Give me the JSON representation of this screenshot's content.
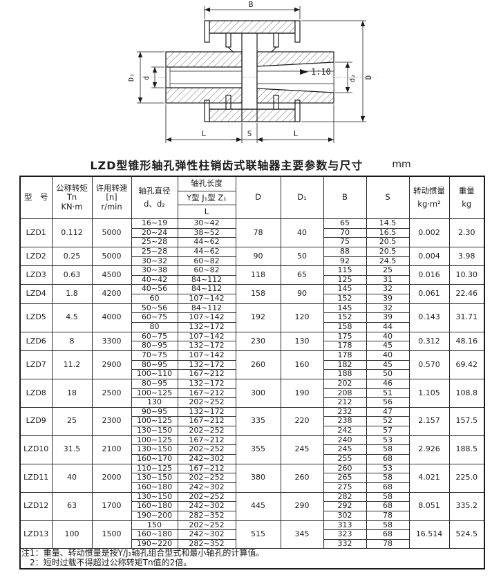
{
  "page": {
    "table_title": "LZD型锥形轴孔弹性柱销齿式联轴器主要参数与尺寸",
    "unit_label": "mm"
  },
  "diagram": {
    "labels": {
      "B": "B",
      "D": "D",
      "D1": "D₁",
      "d": "d",
      "d2": "d₂",
      "L_left": "L",
      "S": "S",
      "L_right": "L",
      "taper": "1:10"
    }
  },
  "table": {
    "headers": {
      "model": "型　号",
      "torque_l1": "公称转矩",
      "torque_l2": "Tn",
      "torque_l3": "KN·m",
      "speed_l1": "许用转速",
      "speed_l2": "[n]",
      "speed_l3": "r/min",
      "bore_dia_l1": "轴孔直径",
      "bore_dia_l2": "d、d₂",
      "bore_len": "轴孔长度",
      "bore_len_types": "Y型 J₁型 Z₁",
      "bore_len_L": "L",
      "D": "D",
      "D1": "D₁",
      "B": "B",
      "S": "S",
      "inertia_l1": "转动惯量",
      "inertia_l2": "kg·m²",
      "weight_l1": "重量",
      "weight_l2": "kg"
    },
    "rows": [
      {
        "model": "LZD1",
        "tn": "0.112",
        "n": "5000",
        "D": "78",
        "D1": "40",
        "inertia": "0.002",
        "weight": "2.30",
        "sub": [
          {
            "d": "16~19",
            "L": "30~42",
            "B": "65",
            "S": "14.5"
          },
          {
            "d": "20~24",
            "L": "38~52",
            "B": "70",
            "S": "16.5"
          },
          {
            "d": "25~28",
            "L": "44~62",
            "B": "75",
            "S": "20.5"
          }
        ]
      },
      {
        "model": "LZD2",
        "tn": "0.25",
        "n": "5000",
        "D": "90",
        "D1": "50",
        "inertia": "0.004",
        "weight": "3.98",
        "sub": [
          {
            "d": "25~28",
            "L": "44~62",
            "B": "88",
            "S": "20.5"
          },
          {
            "d": "30~32",
            "L": "60~82",
            "B": "92",
            "S": "24.5"
          }
        ]
      },
      {
        "model": "LZD3",
        "tn": "0.63",
        "n": "4500",
        "D": "118",
        "D1": "65",
        "inertia": "0.016",
        "weight": "10.30",
        "sub": [
          {
            "d": "30~38",
            "L": "60~82",
            "B": "115",
            "S": "25"
          },
          {
            "d": "40~42",
            "L": "84~112",
            "B": "125",
            "S": "31"
          }
        ]
      },
      {
        "model": "LZD4",
        "tn": "1.8",
        "n": "4200",
        "D": "158",
        "D1": "90",
        "inertia": "0.061",
        "weight": "22.46",
        "sub": [
          {
            "d": "40~56",
            "L": "84~112",
            "B": "145",
            "S": "32"
          },
          {
            "d": "60",
            "L": "107~142",
            "B": "152",
            "S": "39"
          }
        ]
      },
      {
        "model": "LZD5",
        "tn": "4.5",
        "n": "4000",
        "D": "192",
        "D1": "120",
        "inertia": "0.143",
        "weight": "31.71",
        "sub": [
          {
            "d": "50~56",
            "L": "84~112",
            "B": "145",
            "S": "32"
          },
          {
            "d": "60~75",
            "L": "107~142",
            "B": "152",
            "S": "39"
          },
          {
            "d": "80",
            "L": "132~172",
            "B": "158",
            "S": "44"
          }
        ]
      },
      {
        "model": "LZD6",
        "tn": "8",
        "n": "3300",
        "D": "230",
        "D1": "130",
        "inertia": "0.312",
        "weight": "48.16",
        "sub": [
          {
            "d": "60~75",
            "L": "107~142",
            "B": "175",
            "S": "40"
          },
          {
            "d": "80~95",
            "L": "132~172",
            "B": "178",
            "S": "45"
          }
        ]
      },
      {
        "model": "LZD7",
        "tn": "11.2",
        "n": "2900",
        "D": "260",
        "D1": "160",
        "inertia": "0.570",
        "weight": "69.42",
        "sub": [
          {
            "d": "70~75",
            "L": "107~142",
            "B": "178",
            "S": "40"
          },
          {
            "d": "80~95",
            "L": "132~172",
            "B": "182",
            "S": "45"
          },
          {
            "d": "100~110",
            "L": "167~212",
            "B": "188",
            "S": "50"
          }
        ]
      },
      {
        "model": "LZD8",
        "tn": "18",
        "n": "2500",
        "D": "300",
        "D1": "190",
        "inertia": "1.105",
        "weight": "108.8",
        "sub": [
          {
            "d": "80~95",
            "L": "132~172",
            "B": "202",
            "S": "46"
          },
          {
            "d": "100~125",
            "L": "167~212",
            "B": "208",
            "S": "51"
          },
          {
            "d": "130",
            "L": "202~252",
            "B": "212",
            "S": "56"
          }
        ]
      },
      {
        "model": "LZD9",
        "tn": "25",
        "n": "2300",
        "D": "335",
        "D1": "220",
        "inertia": "2.157",
        "weight": "157.5",
        "sub": [
          {
            "d": "90~95",
            "L": "132~172",
            "B": "232",
            "S": "47"
          },
          {
            "d": "100~125",
            "L": "167~212",
            "B": "238",
            "S": "52"
          },
          {
            "d": "130~150",
            "L": "202~252",
            "B": "242",
            "S": "57"
          }
        ]
      },
      {
        "model": "LZD10",
        "tn": "31.5",
        "n": "2100",
        "D": "355",
        "D1": "245",
        "inertia": "2.926",
        "weight": "188.5",
        "sub": [
          {
            "d": "100~125",
            "L": "167~212",
            "B": "240",
            "S": "53"
          },
          {
            "d": "130~150",
            "L": "202~252",
            "B": "245",
            "S": "58"
          },
          {
            "d": "160~170",
            "L": "242~302",
            "B": "255",
            "S": "68"
          }
        ]
      },
      {
        "model": "LZD11",
        "tn": "40",
        "n": "2000",
        "D": "380",
        "D1": "260",
        "inertia": "4.021",
        "weight": "225.0",
        "sub": [
          {
            "d": "110~125",
            "L": "167~212",
            "B": "260",
            "S": "53"
          },
          {
            "d": "130~150",
            "L": "202~252",
            "B": "265",
            "S": "58"
          },
          {
            "d": "160~180",
            "L": "242~302",
            "B": "275",
            "S": "68"
          }
        ]
      },
      {
        "model": "LZD12",
        "tn": "63",
        "n": "1700",
        "D": "445",
        "D1": "290",
        "inertia": "8.051",
        "weight": "335.2",
        "sub": [
          {
            "d": "130~150",
            "L": "202~252",
            "B": "282",
            "S": "58"
          },
          {
            "d": "160~180",
            "L": "242~302",
            "B": "292",
            "S": "68"
          },
          {
            "d": "190~200",
            "L": "282~352",
            "B": "302",
            "S": "78"
          }
        ]
      },
      {
        "model": "LZD13",
        "tn": "100",
        "n": "1500",
        "D": "515",
        "D1": "345",
        "inertia": "16.514",
        "weight": "524.5",
        "sub": [
          {
            "d": "150",
            "L": "202~252",
            "B": "313",
            "S": "58"
          },
          {
            "d": "160~180",
            "L": "242~302",
            "B": "323",
            "S": "68"
          },
          {
            "d": "190~220",
            "L": "282~352",
            "B": "332",
            "S": "78"
          }
        ]
      }
    ],
    "notes": [
      "注1：重量、转动惯量是按Y/J₁轴孔组合型式和最小轴孔的计算值。",
      "2：短时过载不得超过公称转矩Tn值的2倍。"
    ]
  }
}
